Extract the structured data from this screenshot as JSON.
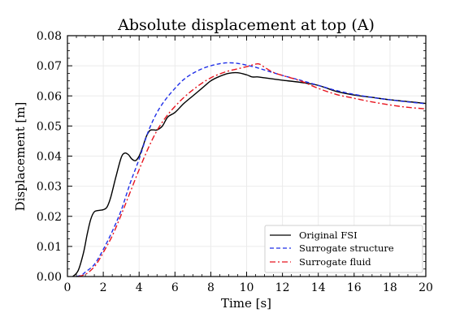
{
  "chart_data": {
    "type": "line",
    "title": "Absolute displacement at top (A)",
    "xlabel": "Time [s]",
    "ylabel": "Displacement [m]",
    "xlim": [
      0,
      20
    ],
    "ylim": [
      0,
      0.08
    ],
    "xticks": [
      0,
      2,
      4,
      6,
      8,
      10,
      12,
      14,
      16,
      18,
      20
    ],
    "xtick_labels": [
      "0",
      "2",
      "4",
      "6",
      "8",
      "10",
      "12",
      "14",
      "16",
      "18",
      "20"
    ],
    "yticks": [
      0,
      0.01,
      0.02,
      0.03,
      0.04,
      0.05,
      0.06,
      0.07,
      0.08
    ],
    "ytick_labels": [
      "0.00",
      "0.01",
      "0.02",
      "0.03",
      "0.04",
      "0.05",
      "0.06",
      "0.07",
      "0.08"
    ],
    "grid": true,
    "legend_position": "bottom-right",
    "series": [
      {
        "name": "Original FSI",
        "color": "#000000",
        "dash": "solid",
        "x": [
          0.3,
          0.6,
          0.9,
          1.1,
          1.3,
          1.5,
          1.8,
          2.0,
          2.2,
          2.4,
          2.7,
          3.0,
          3.2,
          3.4,
          3.6,
          3.8,
          4.0,
          4.2,
          4.4,
          4.6,
          4.8,
          5.0,
          5.3,
          5.6,
          6.0,
          6.5,
          7.0,
          7.5,
          8.0,
          8.5,
          9.0,
          9.5,
          10.0,
          10.3,
          10.6,
          11.0,
          11.5,
          12.0,
          13.0,
          14.0,
          15.0,
          16.0,
          17.0,
          18.0,
          19.0,
          20.0
        ],
        "y": [
          0.0,
          0.002,
          0.008,
          0.014,
          0.019,
          0.0215,
          0.022,
          0.0222,
          0.023,
          0.026,
          0.033,
          0.0395,
          0.041,
          0.0405,
          0.039,
          0.0385,
          0.04,
          0.043,
          0.0465,
          0.0485,
          0.0487,
          0.0487,
          0.05,
          0.053,
          0.0545,
          0.0575,
          0.06,
          0.0625,
          0.065,
          0.0665,
          0.0675,
          0.0677,
          0.067,
          0.0663,
          0.0663,
          0.066,
          0.0656,
          0.0652,
          0.0645,
          0.0635,
          0.0615,
          0.0603,
          0.0595,
          0.0587,
          0.0581,
          0.0575
        ]
      },
      {
        "name": "Surrogate structure",
        "color": "#1f2fe8",
        "dash": "dashed",
        "x": [
          0.5,
          0.8,
          1.0,
          1.5,
          2.0,
          2.5,
          3.0,
          3.5,
          4.0,
          4.5,
          5.0,
          5.5,
          6.0,
          6.5,
          7.0,
          7.5,
          8.0,
          8.5,
          9.0,
          9.5,
          10.0,
          10.5,
          11.0,
          12.0,
          13.0,
          14.0,
          15.0,
          16.0,
          17.0,
          18.0,
          19.0,
          20.0
        ],
        "y": [
          0.0,
          0.0005,
          0.0015,
          0.004,
          0.009,
          0.015,
          0.022,
          0.031,
          0.039,
          0.048,
          0.0545,
          0.059,
          0.0625,
          0.0655,
          0.0675,
          0.069,
          0.07,
          0.0707,
          0.071,
          0.0708,
          0.0702,
          0.0695,
          0.0686,
          0.0668,
          0.0652,
          0.0635,
          0.0618,
          0.0605,
          0.0595,
          0.0587,
          0.058,
          0.0574
        ]
      },
      {
        "name": "Surrogate fluid",
        "color": "#e8141e",
        "dash": "dashdot",
        "x": [
          0.6,
          0.9,
          1.2,
          1.6,
          2.0,
          2.5,
          3.0,
          3.5,
          4.0,
          4.5,
          5.0,
          5.5,
          6.0,
          6.5,
          7.0,
          7.5,
          8.0,
          8.5,
          9.0,
          9.5,
          10.0,
          10.4,
          10.7,
          11.0,
          11.5,
          12.0,
          13.0,
          14.0,
          15.0,
          16.0,
          17.0,
          18.0,
          19.0,
          20.0
        ],
        "y": [
          0.0,
          0.0005,
          0.0015,
          0.004,
          0.008,
          0.0135,
          0.0205,
          0.028,
          0.0355,
          0.0425,
          0.0485,
          0.053,
          0.0565,
          0.0595,
          0.062,
          0.0642,
          0.066,
          0.0673,
          0.0683,
          0.069,
          0.0697,
          0.0704,
          0.0706,
          0.0695,
          0.0678,
          0.0668,
          0.065,
          0.0625,
          0.0605,
          0.0592,
          0.058,
          0.057,
          0.0562,
          0.0557
        ]
      }
    ]
  }
}
